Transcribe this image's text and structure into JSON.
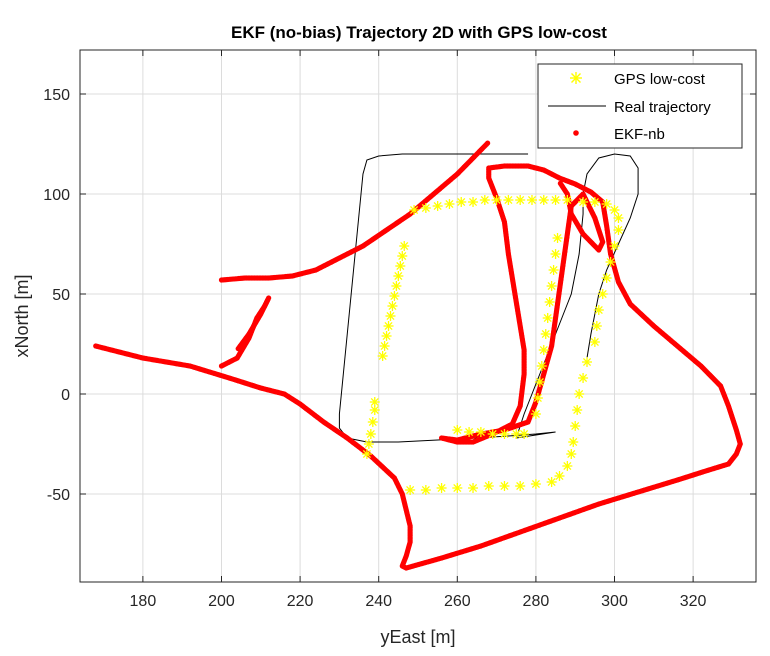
{
  "chart_data": {
    "type": "line",
    "title": "EKF (no-bias) Trajectory 2D with GPS low-cost",
    "xlabel": "yEast [m]",
    "ylabel": "xNorth [m]",
    "xlim": [
      164,
      336
    ],
    "ylim": [
      -94,
      172
    ],
    "xticks": [
      180,
      200,
      220,
      240,
      260,
      280,
      300,
      320
    ],
    "yticks": [
      -50,
      0,
      50,
      100,
      150
    ],
    "grid": true,
    "legend_position": "top-right",
    "legend": [
      "GPS low-cost",
      "Real trajectory",
      "EKF-nb"
    ],
    "colors": {
      "gps": "#ffff00",
      "real": "#000000",
      "ekf": "#ff0000"
    },
    "series": [
      {
        "name": "GPS low-cost",
        "marker": "asterisk",
        "points": [
          [
            237,
            -30
          ],
          [
            237.5,
            -25
          ],
          [
            238,
            -20
          ],
          [
            238.5,
            -14
          ],
          [
            239,
            -8
          ],
          [
            239,
            -4
          ],
          [
            241,
            19
          ],
          [
            241.5,
            24
          ],
          [
            242,
            29
          ],
          [
            242.5,
            34
          ],
          [
            243,
            39
          ],
          [
            243.5,
            44
          ],
          [
            244,
            49
          ],
          [
            244.5,
            54
          ],
          [
            245,
            59
          ],
          [
            245.5,
            64
          ],
          [
            246,
            69
          ],
          [
            246.5,
            74
          ],
          [
            249,
            92
          ],
          [
            252,
            93
          ],
          [
            255,
            94
          ],
          [
            258,
            95
          ],
          [
            261,
            96
          ],
          [
            264,
            96
          ],
          [
            267,
            97
          ],
          [
            270,
            97
          ],
          [
            273,
            97
          ],
          [
            276,
            97
          ],
          [
            279,
            97
          ],
          [
            282,
            97
          ],
          [
            285,
            97
          ],
          [
            288,
            97
          ],
          [
            292,
            96
          ],
          [
            295,
            96
          ],
          [
            298,
            95
          ],
          [
            300,
            92
          ],
          [
            301,
            88
          ],
          [
            301,
            82
          ],
          [
            300,
            74
          ],
          [
            299,
            66
          ],
          [
            298,
            58
          ],
          [
            297,
            50
          ],
          [
            296,
            42
          ],
          [
            295.5,
            34
          ],
          [
            295,
            26
          ],
          [
            293,
            16
          ],
          [
            292,
            8
          ],
          [
            291,
            0
          ],
          [
            290.5,
            -8
          ],
          [
            290,
            -16
          ],
          [
            289.5,
            -24
          ],
          [
            289,
            -30
          ],
          [
            288,
            -36
          ],
          [
            286,
            -41
          ],
          [
            284,
            -44
          ],
          [
            280,
            -45
          ],
          [
            276,
            -46
          ],
          [
            272,
            -46
          ],
          [
            268,
            -46
          ],
          [
            264,
            -47
          ],
          [
            260,
            -47
          ],
          [
            256,
            -47
          ],
          [
            252,
            -48
          ],
          [
            248,
            -48
          ],
          [
            260,
            -18
          ],
          [
            263,
            -19
          ],
          [
            266,
            -19
          ],
          [
            269,
            -20
          ],
          [
            272,
            -20
          ],
          [
            275,
            -20
          ],
          [
            277,
            -20
          ],
          [
            280,
            -10
          ],
          [
            280.5,
            -2
          ],
          [
            281,
            6
          ],
          [
            281.5,
            14
          ],
          [
            282,
            22
          ],
          [
            282.5,
            30
          ],
          [
            283,
            38
          ],
          [
            283.5,
            46
          ],
          [
            284,
            54
          ],
          [
            284.5,
            62
          ],
          [
            285,
            70
          ],
          [
            285.5,
            78
          ]
        ]
      },
      {
        "name": "Real trajectory",
        "points": [
          [
            278,
            120
          ],
          [
            270,
            120
          ],
          [
            262,
            120
          ],
          [
            254,
            120
          ],
          [
            246,
            120
          ],
          [
            240,
            119
          ],
          [
            237,
            117
          ],
          [
            236,
            110
          ],
          [
            235.5,
            100
          ],
          [
            235,
            90
          ],
          [
            234.5,
            80
          ],
          [
            234,
            70
          ],
          [
            233.5,
            60
          ],
          [
            233,
            50
          ],
          [
            232.5,
            40
          ],
          [
            232,
            30
          ],
          [
            231.5,
            20
          ],
          [
            231,
            10
          ],
          [
            230.5,
            0
          ],
          [
            230,
            -10
          ],
          [
            230,
            -17
          ],
          [
            232,
            -22
          ],
          [
            237,
            -24
          ],
          [
            245,
            -24
          ],
          [
            255,
            -23
          ],
          [
            265,
            -22
          ],
          [
            273,
            -21
          ],
          [
            280,
            -20
          ],
          [
            285,
            -19
          ],
          [
            275,
            -22
          ],
          [
            277,
            -10
          ],
          [
            279,
            0
          ],
          [
            281,
            10
          ],
          [
            283,
            20
          ],
          [
            285,
            30
          ],
          [
            287,
            40
          ],
          [
            289,
            50
          ],
          [
            290,
            60
          ],
          [
            291,
            70
          ],
          [
            291.5,
            80
          ],
          [
            292,
            90
          ],
          [
            292,
            100
          ],
          [
            293,
            110
          ],
          [
            296,
            118
          ],
          [
            300,
            120
          ],
          [
            304,
            119
          ],
          [
            306,
            113
          ],
          [
            306,
            100
          ],
          [
            304,
            88
          ],
          [
            301,
            75
          ],
          [
            298,
            62
          ],
          [
            296,
            50
          ],
          [
            295,
            40
          ],
          [
            294,
            30
          ],
          [
            293,
            18
          ]
        ]
      },
      {
        "name": "EKF-nb",
        "marker": "dot",
        "points": [
          [
            168,
            24
          ],
          [
            180,
            18
          ],
          [
            192,
            14
          ],
          [
            202,
            8
          ],
          [
            210,
            3
          ],
          [
            216,
            0
          ],
          [
            220,
            -5
          ],
          [
            226,
            -14
          ],
          [
            232,
            -22
          ],
          [
            238,
            -31
          ],
          [
            244,
            -42
          ],
          [
            246,
            -50
          ],
          [
            247,
            -58
          ],
          [
            248,
            -66
          ],
          [
            248,
            -74
          ],
          [
            247,
            -81
          ],
          [
            246,
            -86
          ],
          [
            247,
            -87
          ],
          [
            256,
            -82
          ],
          [
            266,
            -76
          ],
          [
            276,
            -69
          ],
          [
            286,
            -62
          ],
          [
            296,
            -55
          ],
          [
            306,
            -49
          ],
          [
            316,
            -43
          ],
          [
            324,
            -38
          ],
          [
            329,
            -35
          ],
          [
            331,
            -30
          ],
          [
            332,
            -25
          ],
          [
            331,
            -18
          ],
          [
            329,
            -6
          ],
          [
            327,
            4
          ],
          [
            322,
            14
          ],
          [
            316,
            24
          ],
          [
            310,
            34
          ],
          [
            304,
            45
          ],
          [
            301,
            56
          ],
          [
            299,
            70
          ],
          [
            298,
            84
          ],
          [
            297,
            96
          ],
          [
            294,
            101
          ],
          [
            290,
            105
          ],
          [
            286,
            108
          ],
          [
            282,
            112
          ],
          [
            278,
            114
          ],
          [
            272,
            114
          ],
          [
            268,
            113
          ],
          [
            268,
            108
          ],
          [
            270,
            98
          ],
          [
            272,
            86
          ],
          [
            273,
            70
          ],
          [
            274,
            58
          ],
          [
            275,
            46
          ],
          [
            276,
            34
          ],
          [
            277,
            22
          ],
          [
            277,
            10
          ],
          [
            276,
            -6
          ],
          [
            274,
            -15
          ],
          [
            269,
            -20
          ],
          [
            264,
            -24
          ],
          [
            260,
            -24
          ],
          [
            256,
            -22
          ],
          [
            260,
            -23
          ],
          [
            266,
            -20
          ],
          [
            272,
            -18
          ],
          [
            278,
            -14
          ],
          [
            280,
            -4
          ],
          [
            282,
            10
          ],
          [
            284,
            24
          ],
          [
            285,
            38
          ],
          [
            286,
            52
          ],
          [
            287,
            66
          ],
          [
            288,
            80
          ],
          [
            289,
            94
          ],
          [
            292,
            100
          ],
          [
            295,
            88
          ],
          [
            297,
            76
          ],
          [
            296,
            72
          ],
          [
            292,
            80
          ],
          [
            289,
            90
          ],
          [
            288,
            100
          ],
          [
            286,
            106
          ],
          [
            200,
            14
          ],
          [
            204,
            18
          ],
          [
            207,
            28
          ],
          [
            209,
            38
          ],
          [
            211,
            44
          ],
          [
            212,
            48
          ],
          [
            210,
            40
          ],
          [
            207,
            30
          ],
          [
            204,
            22
          ],
          [
            200,
            57
          ],
          [
            206,
            58
          ],
          [
            212,
            58
          ],
          [
            218,
            59
          ],
          [
            224,
            62
          ],
          [
            230,
            68
          ],
          [
            236,
            74
          ],
          [
            242,
            82
          ],
          [
            248,
            90
          ],
          [
            254,
            100
          ],
          [
            260,
            110
          ],
          [
            264,
            118
          ],
          [
            268,
            126
          ]
        ]
      }
    ]
  }
}
